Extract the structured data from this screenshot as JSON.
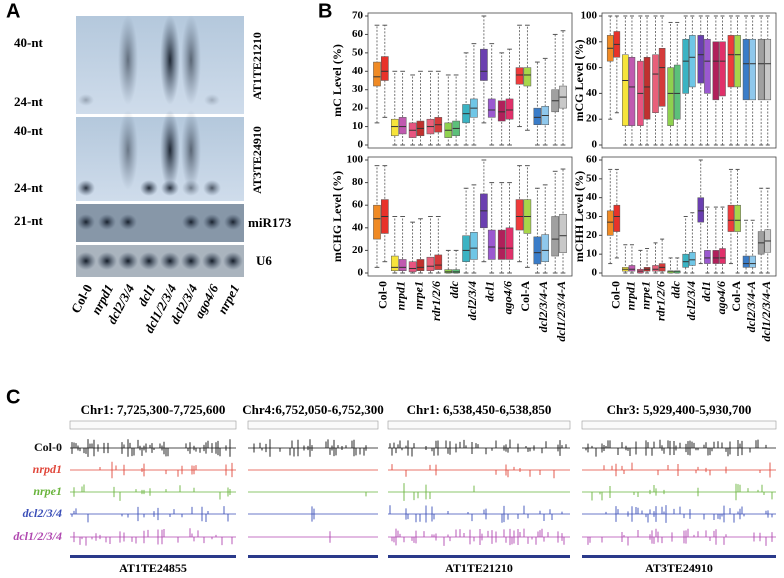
{
  "panel_labels": [
    "A",
    "B",
    "C"
  ],
  "blot": {
    "size_labels": [
      "40-nt",
      "24-nt",
      "40-nt",
      "24-nt",
      "21-nt"
    ],
    "probes": [
      "AT1TE21210",
      "AT3TE24910",
      "miR173",
      "U6"
    ],
    "lanes": [
      "Col-0",
      "nrpd1",
      "dcl2/3/4",
      "dcl1",
      "dcl1/2/3/4",
      "dcl2/3/4",
      "ago4/6",
      "nrpe1"
    ]
  },
  "chart_data": [
    {
      "type": "box",
      "ylabel": "mC Level (%)",
      "ylim": [
        0,
        70
      ],
      "yticks": [
        0,
        10,
        20,
        30,
        40,
        50,
        60,
        70
      ],
      "series": [
        {
          "color": [
            "#f08a24",
            "#f7e43a",
            "#e75480",
            "#e8607a",
            "#8fd14f",
            "#3bb3c3",
            "#6a3fb0",
            "#b0205a",
            "#ef3b3b",
            "#3a7cc8",
            "#a0a0a0"
          ],
          "whislo": [
            12,
            0,
            0,
            0,
            0,
            0,
            12,
            0,
            10,
            0,
            0
          ],
          "q1": [
            32,
            5,
            4,
            6,
            4,
            12,
            35,
            13,
            33,
            11,
            18
          ],
          "median": [
            37,
            10,
            8,
            10,
            8,
            17,
            40,
            18,
            38,
            15,
            24
          ],
          "q3": [
            45,
            14,
            12,
            14,
            12,
            22,
            52,
            24,
            42,
            20,
            30
          ],
          "whishi": [
            65,
            40,
            38,
            40,
            38,
            50,
            70,
            50,
            65,
            45,
            60
          ]
        },
        {
          "color": [
            "#e8322a",
            "#c05ab0",
            "#c0302e",
            "#d43a3a",
            "#5cc07a",
            "#6fc6e6",
            "#9b59d0",
            "#e0306a",
            "#a8d64a",
            "#8fc8ec",
            "#c8c8c8"
          ],
          "whislo": [
            15,
            0,
            0,
            0,
            0,
            0,
            0,
            0,
            8,
            0,
            0
          ],
          "q1": [
            35,
            6,
            5,
            7,
            5,
            15,
            15,
            14,
            32,
            11,
            20
          ],
          "median": [
            40,
            10,
            9,
            11,
            9,
            20,
            19,
            19,
            38,
            16,
            26
          ],
          "q3": [
            48,
            15,
            13,
            15,
            13,
            25,
            25,
            25,
            42,
            21,
            32
          ],
          "whishi": [
            65,
            40,
            40,
            40,
            38,
            55,
            55,
            52,
            65,
            47,
            62
          ]
        }
      ]
    },
    {
      "type": "box",
      "ylabel": "mCG Level (%)",
      "ylim": [
        0,
        100
      ],
      "yticks": [
        0,
        20,
        40,
        60,
        80,
        100
      ],
      "series": [
        {
          "color": [
            "#f08a24",
            "#f7e43a",
            "#e75480",
            "#e8607a",
            "#8fd14f",
            "#3bb3c3",
            "#6a3fb0",
            "#b0205a",
            "#ef3b3b",
            "#3a7cc8",
            "#a0a0a0"
          ],
          "whislo": [
            20,
            0,
            0,
            0,
            0,
            0,
            0,
            0,
            0,
            0,
            0
          ],
          "q1": [
            65,
            15,
            15,
            25,
            15,
            40,
            48,
            35,
            45,
            35,
            35
          ],
          "median": [
            75,
            50,
            40,
            55,
            40,
            65,
            70,
            65,
            70,
            63,
            63
          ],
          "q3": [
            85,
            70,
            65,
            70,
            60,
            82,
            85,
            80,
            85,
            82,
            82
          ],
          "whishi": [
            100,
            100,
            100,
            100,
            95,
            100,
            100,
            100,
            100,
            100,
            100
          ]
        },
        {
          "color": [
            "#e8322a",
            "#c05ab0",
            "#c0302e",
            "#d43a3a",
            "#5cc07a",
            "#6fc6e6",
            "#9b59d0",
            "#e0306a",
            "#a8d64a",
            "#8fc8ec",
            "#c8c8c8"
          ],
          "whislo": [
            25,
            0,
            0,
            0,
            0,
            0,
            0,
            0,
            0,
            0,
            0
          ],
          "q1": [
            68,
            15,
            20,
            30,
            20,
            45,
            40,
            38,
            45,
            35,
            35
          ],
          "median": [
            78,
            45,
            45,
            60,
            40,
            68,
            65,
            65,
            70,
            63,
            63
          ],
          "q3": [
            88,
            68,
            68,
            75,
            62,
            85,
            82,
            80,
            85,
            82,
            82
          ],
          "whishi": [
            100,
            100,
            100,
            100,
            95,
            100,
            100,
            100,
            100,
            100,
            100
          ]
        }
      ]
    },
    {
      "type": "box",
      "ylabel": "mCHG Level (%)",
      "ylim": [
        0,
        100
      ],
      "yticks": [
        0,
        20,
        40,
        60,
        80,
        100
      ],
      "categories": [
        "Col-0",
        "nrpd1",
        "nrpe1",
        "rdr1/2/6",
        "ddc",
        "dcl2/3/4",
        "dcl1",
        "ago4/6",
        "Col-A",
        "dcl2/3/4-A",
        "dcl1/2/3/4-A"
      ],
      "series": [
        {
          "color": [
            "#f08a24",
            "#f7e43a",
            "#e75480",
            "#e8607a",
            "#8fd14f",
            "#3bb3c3",
            "#6a3fb0",
            "#b0205a",
            "#ef3b3b",
            "#3a7cc8",
            "#a0a0a0"
          ],
          "whislo": [
            5,
            0,
            0,
            0,
            0,
            0,
            10,
            0,
            10,
            0,
            0
          ],
          "q1": [
            30,
            2,
            1,
            2,
            0,
            10,
            40,
            12,
            38,
            8,
            15
          ],
          "median": [
            48,
            5,
            4,
            6,
            1,
            20,
            55,
            22,
            50,
            18,
            30
          ],
          "q3": [
            60,
            15,
            10,
            14,
            3,
            33,
            70,
            38,
            65,
            32,
            50
          ],
          "whishi": [
            95,
            50,
            45,
            50,
            20,
            75,
            100,
            80,
            95,
            75,
            90
          ]
        },
        {
          "color": [
            "#e8322a",
            "#c05ab0",
            "#c0302e",
            "#d43a3a",
            "#5cc07a",
            "#6fc6e6",
            "#9b59d0",
            "#e0306a",
            "#a8d64a",
            "#8fc8ec",
            "#c8c8c8"
          ],
          "whislo": [
            10,
            0,
            0,
            0,
            0,
            0,
            0,
            0,
            5,
            0,
            0
          ],
          "q1": [
            35,
            2,
            2,
            3,
            0,
            12,
            12,
            12,
            35,
            10,
            18
          ],
          "median": [
            50,
            5,
            5,
            7,
            1,
            22,
            23,
            22,
            50,
            20,
            33
          ],
          "q3": [
            65,
            12,
            12,
            16,
            3,
            36,
            38,
            40,
            65,
            34,
            52
          ],
          "whishi": [
            95,
            50,
            48,
            50,
            20,
            78,
            80,
            80,
            95,
            78,
            92
          ]
        }
      ]
    },
    {
      "type": "box",
      "ylabel": "mCHH Level (%)",
      "ylim": [
        0,
        60
      ],
      "yticks": [
        0,
        10,
        20,
        30,
        40,
        50,
        60
      ],
      "categories": [
        "Col-0",
        "nrpd1",
        "nrpe1",
        "rdr1/2/6",
        "ddc",
        "dcl2/3/4",
        "dcl1",
        "ago4/6",
        "Col-A",
        "dcl2/3/4-A",
        "dcl1/2/3/4-A"
      ],
      "series": [
        {
          "color": [
            "#f08a24",
            "#f7e43a",
            "#e75480",
            "#e8607a",
            "#8fd14f",
            "#3bb3c3",
            "#6a3fb0",
            "#b0205a",
            "#ef3b3b",
            "#3a7cc8",
            "#a0a0a0"
          ],
          "whislo": [
            5,
            0,
            0,
            0,
            0,
            0,
            5,
            0,
            5,
            0,
            0
          ],
          "q1": [
            20,
            1,
            0,
            1,
            0,
            3,
            27,
            5,
            22,
            3,
            10
          ],
          "median": [
            27,
            2,
            1,
            2,
            1,
            6,
            33,
            8,
            28,
            5,
            16
          ],
          "q3": [
            33,
            3,
            2,
            4,
            1,
            10,
            40,
            12,
            36,
            9,
            22
          ],
          "whishi": [
            55,
            15,
            12,
            16,
            8,
            30,
            60,
            35,
            55,
            28,
            45
          ]
        },
        {
          "color": [
            "#e8322a",
            "#c05ab0",
            "#c0302e",
            "#d43a3a",
            "#5cc07a",
            "#6fc6e6",
            "#9b59d0",
            "#e0306a",
            "#a8d64a",
            "#8fc8ec",
            "#c8c8c8"
          ],
          "whislo": [
            8,
            0,
            0,
            0,
            0,
            0,
            0,
            0,
            0,
            0,
            0
          ],
          "q1": [
            22,
            1,
            1,
            1,
            0,
            4,
            5,
            5,
            22,
            3,
            11
          ],
          "median": [
            30,
            2,
            2,
            3,
            1,
            7,
            8,
            8,
            28,
            5,
            17
          ],
          "q3": [
            36,
            4,
            3,
            5,
            1,
            11,
            12,
            13,
            36,
            9,
            23
          ],
          "whishi": [
            55,
            15,
            13,
            18,
            8,
            32,
            35,
            35,
            55,
            28,
            45
          ]
        }
      ]
    }
  ],
  "browser": {
    "regions": [
      "Chr1: 7,725,300-7,725,600",
      "Chr4:6,752,050-6,752,300",
      "Chr1: 6,538,450-6,538,850",
      "Chr3: 5,929,400-5,930,700"
    ],
    "genes": [
      "AT1TE24855",
      "AT1TE21210",
      "AT3TE24910"
    ],
    "tracks": [
      {
        "name": "Col-0",
        "color": "#111111"
      },
      {
        "name": "nrpd1",
        "color": "#e0463a"
      },
      {
        "name": "nrpe1",
        "color": "#69b43c"
      },
      {
        "name": "dcl2/3/4",
        "color": "#3a4eb8"
      },
      {
        "name": "dcl1/2/3/4",
        "color": "#b048b0"
      }
    ]
  }
}
